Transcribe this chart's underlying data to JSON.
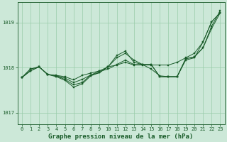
{
  "background_color": "#cce8d8",
  "grid_color": "#99ccaa",
  "line_color": "#1a5c2a",
  "marker_color": "#1a5c2a",
  "title": "Graphe pression niveau de la mer (hPa)",
  "title_fontsize": 6.5,
  "ylim": [
    1016.75,
    1019.45
  ],
  "xlim": [
    -0.5,
    23.5
  ],
  "yticks": [
    1017,
    1018,
    1019
  ],
  "xticks": [
    0,
    1,
    2,
    3,
    4,
    5,
    6,
    7,
    8,
    9,
    10,
    11,
    12,
    13,
    14,
    15,
    16,
    17,
    18,
    19,
    20,
    21,
    22,
    23
  ],
  "series": [
    [
      1017.78,
      1017.93,
      1018.02,
      1017.85,
      1017.83,
      1017.8,
      1017.73,
      1017.83,
      1017.88,
      1017.93,
      1018.02,
      1018.06,
      1018.12,
      1018.06,
      1018.06,
      1018.06,
      1018.06,
      1018.06,
      1018.12,
      1018.22,
      1018.32,
      1018.57,
      1019.02,
      1019.22
    ],
    [
      1017.78,
      1017.93,
      1018.02,
      1017.85,
      1017.82,
      1017.77,
      1017.67,
      1017.74,
      1017.84,
      1017.92,
      1017.97,
      1018.07,
      1018.17,
      1018.07,
      1018.07,
      1017.97,
      1017.82,
      1017.8,
      1017.8,
      1018.17,
      1018.22,
      1018.57,
      1019.02,
      1019.22
    ],
    [
      1017.78,
      1017.97,
      1018.02,
      1017.85,
      1017.82,
      1017.74,
      1017.62,
      1017.67,
      1017.84,
      1017.89,
      1018.02,
      1018.22,
      1018.32,
      1018.17,
      1018.07,
      1018.07,
      1017.8,
      1017.8,
      1017.8,
      1018.2,
      1018.24,
      1018.44,
      1018.87,
      1019.22
    ],
    [
      1017.78,
      1017.97,
      1018.02,
      1017.85,
      1017.8,
      1017.72,
      1017.57,
      1017.64,
      1017.82,
      1017.89,
      1018.02,
      1018.27,
      1018.37,
      1018.12,
      1018.07,
      1018.07,
      1017.8,
      1017.8,
      1017.8,
      1018.2,
      1018.24,
      1018.44,
      1018.92,
      1019.27
    ]
  ]
}
